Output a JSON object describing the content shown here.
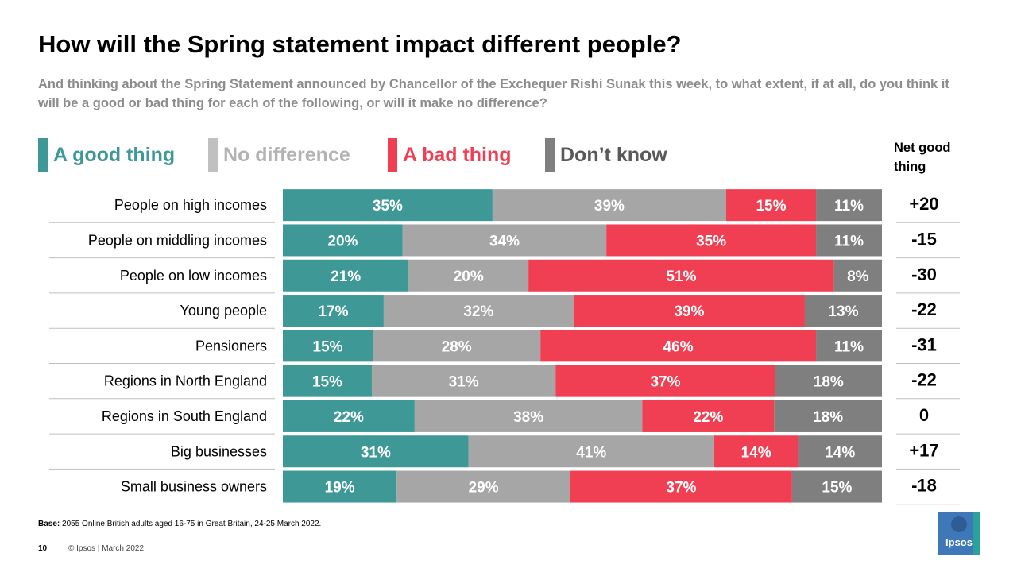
{
  "title": "How will the Spring statement impact different people?",
  "subtitle": "And thinking about the Spring Statement announced by Chancellor of the Exchequer Rishi Sunak this week, to what extent, if at all, do you think it will be a good or bad thing for each of the following, or will it make no difference?",
  "net_header": "Net good thing",
  "colors": {
    "good": "#3d9896",
    "no_difference": "#a6a6a6",
    "bad": "#f03e52",
    "dont_know": "#7f7f7f"
  },
  "legend": [
    {
      "label": "A good thing",
      "color": "#3d9896",
      "text_color": "#3d9896"
    },
    {
      "label": "No difference",
      "color": "#c0c0c0",
      "text_color": "#b3b3b3"
    },
    {
      "label": "A bad thing",
      "color": "#f03e52",
      "text_color": "#f03e52"
    },
    {
      "label": "Don’t know",
      "color": "#7f7f7f",
      "text_color": "#595959"
    }
  ],
  "chart_data": {
    "type": "bar",
    "orientation": "horizontal",
    "stacked": true,
    "unit": "%",
    "categories": [
      "People on high incomes",
      "People on middling incomes",
      "People on low incomes",
      "Young people",
      "Pensioners",
      "Regions in North England",
      "Regions in South England",
      "Big businesses",
      "Small business owners"
    ],
    "series": [
      {
        "name": "A good thing",
        "values": [
          35,
          20,
          21,
          17,
          15,
          15,
          22,
          31,
          19
        ]
      },
      {
        "name": "No difference",
        "values": [
          39,
          34,
          20,
          32,
          28,
          31,
          38,
          41,
          29
        ]
      },
      {
        "name": "A bad thing",
        "values": [
          15,
          35,
          51,
          39,
          46,
          37,
          22,
          14,
          37
        ]
      },
      {
        "name": "Don’t know",
        "values": [
          11,
          11,
          8,
          13,
          11,
          18,
          18,
          14,
          15
        ]
      }
    ],
    "net_good": [
      "+20",
      "-15",
      "-30",
      "-22",
      "-31",
      "-22",
      "0",
      "+17",
      "-18"
    ]
  },
  "footer": {
    "base_label": "Base:",
    "base_text": " 2055 Online British adults aged 16-75 in Great Britain, 24-25 March 2022.",
    "page_number": "10",
    "copyright": "© Ipsos | March 2022",
    "logo_text": "Ipsos"
  }
}
